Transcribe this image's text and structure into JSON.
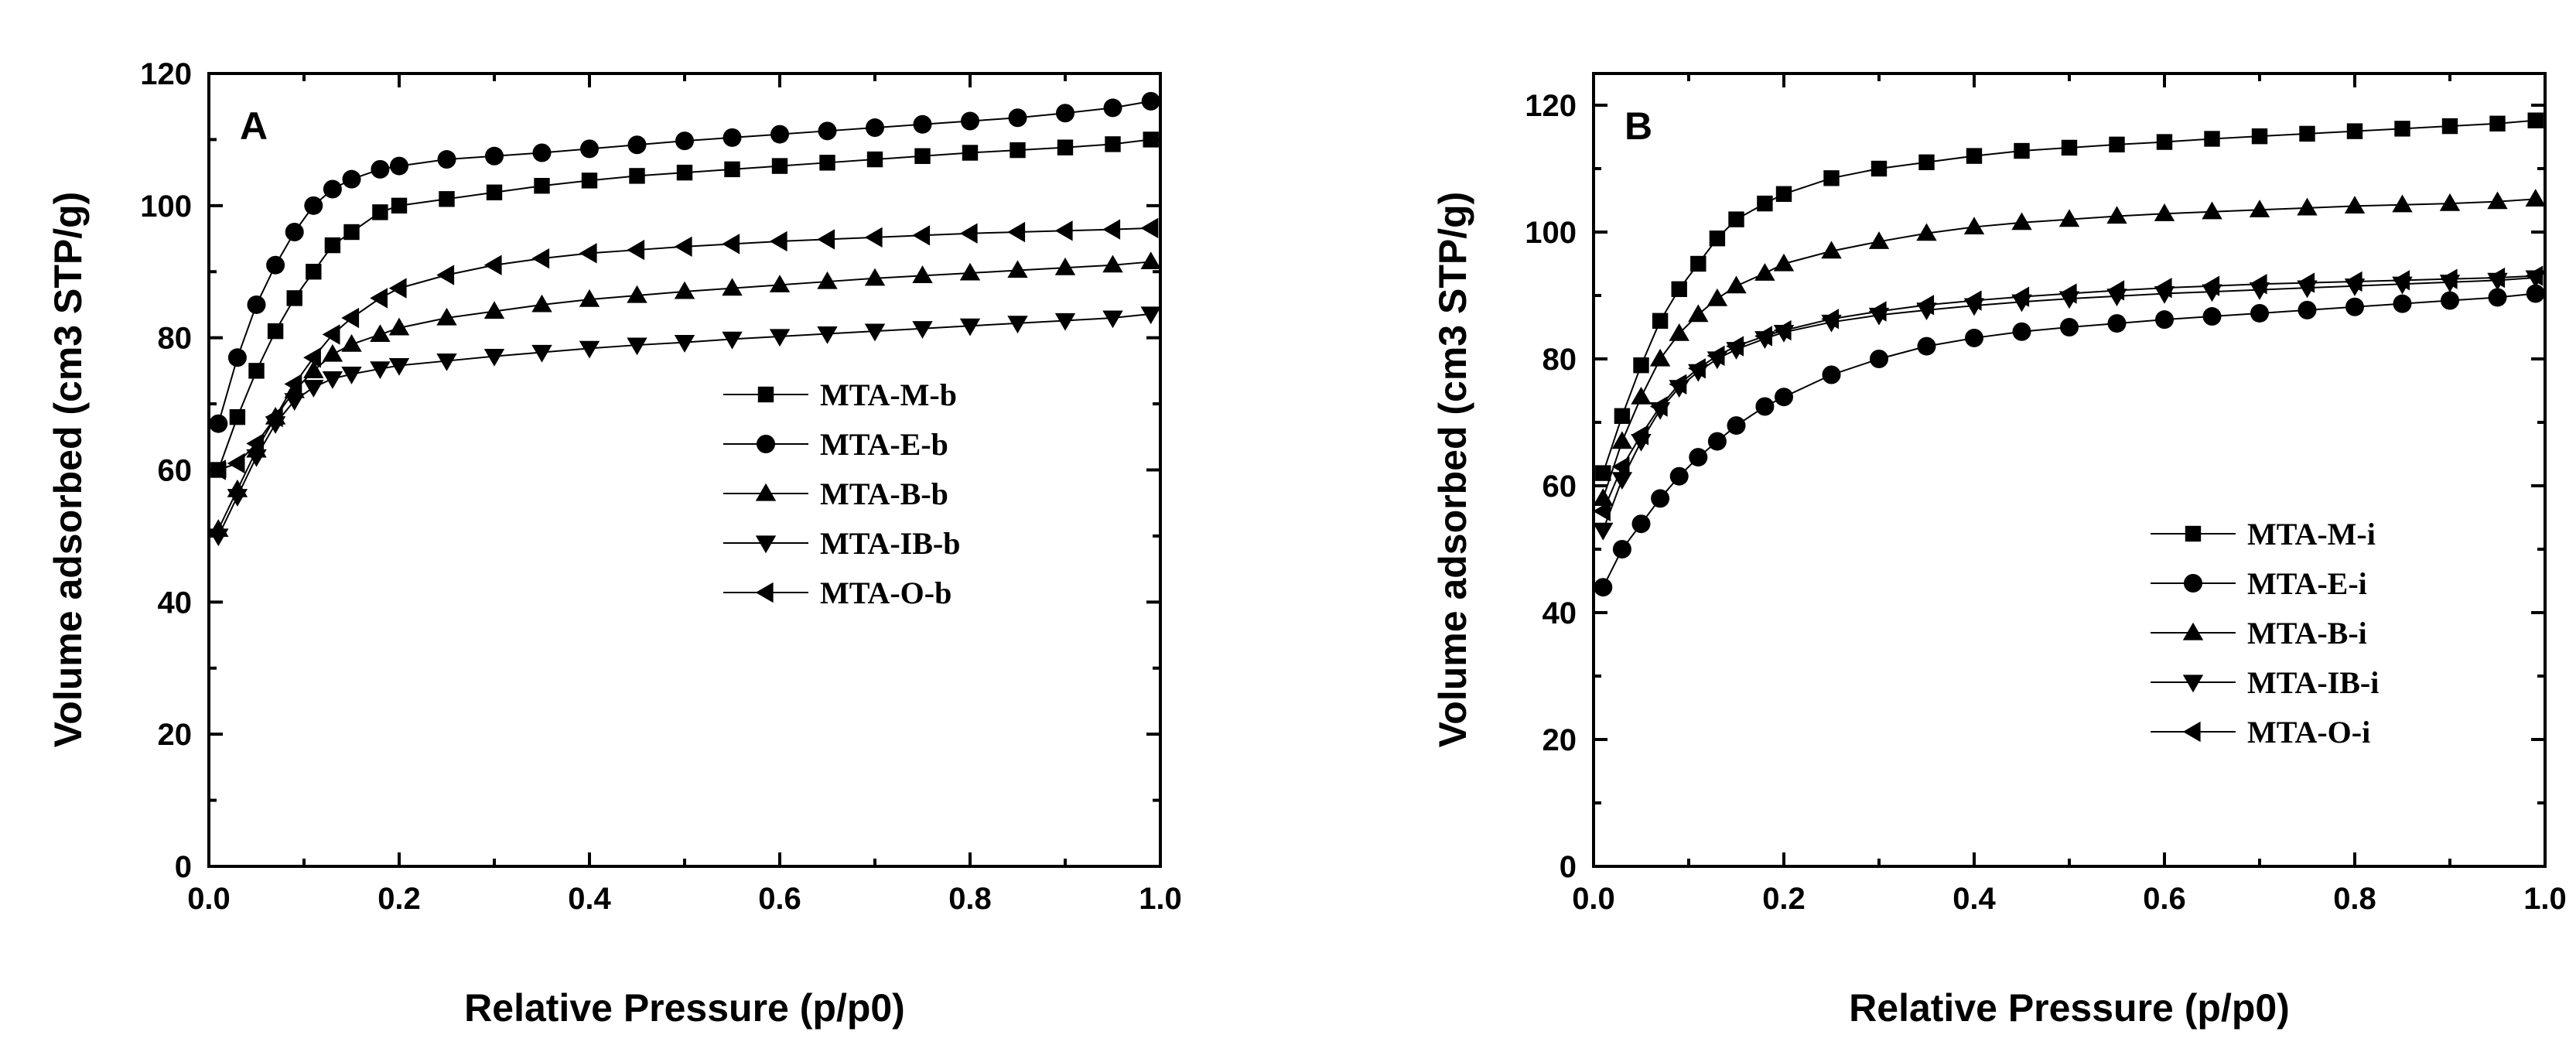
{
  "chart_data": [
    {
      "type": "line",
      "panel": "A",
      "xlabel": "Relative Pressure (p/p0)",
      "ylabel": "Volume adsorbed (cm3 STP/g)",
      "xlim": [
        0.0,
        1.0
      ],
      "ylim": [
        0,
        120
      ],
      "xticks": [
        0.0,
        0.2,
        0.4,
        0.6,
        0.8,
        1.0
      ],
      "yticks": [
        0,
        20,
        40,
        60,
        80,
        100,
        120
      ],
      "xtick_labels": [
        "0.0",
        "0.2",
        "0.4",
        "0.6",
        "0.8",
        "1.0"
      ],
      "ytick_labels": [
        "0",
        "20",
        "40",
        "60",
        "80",
        "100",
        "120"
      ],
      "legend_position": "center-right",
      "series": [
        {
          "name": "MTA-M-b",
          "marker": "square",
          "x": [
            0.01,
            0.03,
            0.05,
            0.07,
            0.09,
            0.11,
            0.13,
            0.15,
            0.18,
            0.2,
            0.25,
            0.3,
            0.35,
            0.4,
            0.45,
            0.5,
            0.55,
            0.6,
            0.65,
            0.7,
            0.75,
            0.8,
            0.85,
            0.9,
            0.95,
            0.99
          ],
          "y": [
            60,
            68,
            75,
            81,
            86,
            90,
            94,
            96,
            99,
            100,
            101,
            102,
            103,
            103.8,
            104.5,
            105,
            105.5,
            106,
            106.5,
            107,
            107.5,
            108,
            108.4,
            108.8,
            109.3,
            110
          ]
        },
        {
          "name": "MTA-E-b",
          "marker": "circle",
          "x": [
            0.01,
            0.03,
            0.05,
            0.07,
            0.09,
            0.11,
            0.13,
            0.15,
            0.18,
            0.2,
            0.25,
            0.3,
            0.35,
            0.4,
            0.45,
            0.5,
            0.55,
            0.6,
            0.65,
            0.7,
            0.75,
            0.8,
            0.85,
            0.9,
            0.95,
            0.99
          ],
          "y": [
            67,
            77,
            85,
            91,
            96,
            100,
            102.5,
            104,
            105.5,
            106,
            107,
            107.5,
            108,
            108.6,
            109.2,
            109.8,
            110.3,
            110.8,
            111.3,
            111.8,
            112.3,
            112.8,
            113.3,
            114,
            114.8,
            115.8
          ]
        },
        {
          "name": "MTA-B-b",
          "marker": "triangle-up",
          "x": [
            0.01,
            0.03,
            0.05,
            0.07,
            0.09,
            0.11,
            0.13,
            0.15,
            0.18,
            0.2,
            0.25,
            0.3,
            0.35,
            0.4,
            0.45,
            0.5,
            0.55,
            0.6,
            0.65,
            0.7,
            0.75,
            0.8,
            0.85,
            0.9,
            0.95,
            0.99
          ],
          "y": [
            51,
            57,
            63,
            68,
            72,
            75,
            77.5,
            79,
            80.5,
            81.5,
            83,
            84,
            85,
            85.8,
            86.4,
            87,
            87.5,
            88,
            88.5,
            89,
            89.4,
            89.8,
            90.2,
            90.6,
            91,
            91.5
          ]
        },
        {
          "name": "MTA-IB-b",
          "marker": "triangle-down",
          "x": [
            0.01,
            0.03,
            0.05,
            0.07,
            0.09,
            0.11,
            0.13,
            0.15,
            0.18,
            0.2,
            0.25,
            0.3,
            0.35,
            0.4,
            0.45,
            0.5,
            0.55,
            0.6,
            0.65,
            0.7,
            0.75,
            0.8,
            0.85,
            0.9,
            0.95,
            0.99
          ],
          "y": [
            50,
            56,
            62,
            67,
            70.5,
            72.5,
            73.8,
            74.5,
            75.3,
            75.8,
            76.5,
            77.2,
            77.8,
            78.4,
            78.9,
            79.3,
            79.8,
            80.2,
            80.6,
            81,
            81.4,
            81.8,
            82.2,
            82.6,
            83,
            83.6
          ]
        },
        {
          "name": "MTA-O-b",
          "marker": "triangle-left",
          "x": [
            0.01,
            0.03,
            0.05,
            0.07,
            0.09,
            0.11,
            0.13,
            0.15,
            0.18,
            0.2,
            0.25,
            0.3,
            0.35,
            0.4,
            0.45,
            0.5,
            0.55,
            0.6,
            0.65,
            0.7,
            0.75,
            0.8,
            0.85,
            0.9,
            0.95,
            0.99
          ],
          "y": [
            60,
            61,
            64,
            68,
            73,
            77,
            80.5,
            83,
            86,
            87.5,
            89.5,
            91,
            92,
            92.8,
            93.3,
            93.8,
            94.2,
            94.6,
            94.9,
            95.2,
            95.5,
            95.8,
            96,
            96.2,
            96.4,
            96.6
          ]
        }
      ]
    },
    {
      "type": "line",
      "panel": "B",
      "xlabel": "Relative Pressure (p/p0)",
      "ylabel": "Volume adsorbed (cm3 STP/g)",
      "xlim": [
        0.0,
        1.0
      ],
      "ylim": [
        0,
        125
      ],
      "xticks": [
        0.0,
        0.2,
        0.4,
        0.6,
        0.8,
        1.0
      ],
      "yticks": [
        0,
        20,
        40,
        60,
        80,
        100,
        120
      ],
      "xtick_labels": [
        "0.0",
        "0.2",
        "0.4",
        "0.6",
        "0.8",
        "1.0"
      ],
      "ytick_labels": [
        "0",
        "20",
        "40",
        "60",
        "80",
        "100",
        "120"
      ],
      "legend_position": "bottom-right",
      "series": [
        {
          "name": "MTA-M-i",
          "marker": "square",
          "x": [
            0.01,
            0.03,
            0.05,
            0.07,
            0.09,
            0.11,
            0.13,
            0.15,
            0.18,
            0.2,
            0.25,
            0.3,
            0.35,
            0.4,
            0.45,
            0.5,
            0.55,
            0.6,
            0.65,
            0.7,
            0.75,
            0.8,
            0.85,
            0.9,
            0.95,
            0.99
          ],
          "y": [
            62,
            71,
            79,
            86,
            91,
            95,
            99,
            102,
            104.5,
            106,
            108.5,
            110,
            111,
            112,
            112.8,
            113.3,
            113.8,
            114.2,
            114.7,
            115.1,
            115.5,
            115.9,
            116.3,
            116.7,
            117.1,
            117.6
          ]
        },
        {
          "name": "MTA-E-i",
          "marker": "circle",
          "x": [
            0.01,
            0.03,
            0.05,
            0.07,
            0.09,
            0.11,
            0.13,
            0.15,
            0.18,
            0.2,
            0.25,
            0.3,
            0.35,
            0.4,
            0.45,
            0.5,
            0.55,
            0.6,
            0.65,
            0.7,
            0.75,
            0.8,
            0.85,
            0.9,
            0.95,
            0.99
          ],
          "y": [
            44,
            50,
            54,
            58,
            61.5,
            64.5,
            67,
            69.5,
            72.5,
            74,
            77.5,
            80,
            82,
            83.3,
            84.3,
            85,
            85.6,
            86.2,
            86.7,
            87.2,
            87.7,
            88.2,
            88.7,
            89.2,
            89.7,
            90.3
          ]
        },
        {
          "name": "MTA-B-i",
          "marker": "triangle-up",
          "x": [
            0.01,
            0.03,
            0.05,
            0.07,
            0.09,
            0.11,
            0.13,
            0.15,
            0.18,
            0.2,
            0.25,
            0.3,
            0.35,
            0.4,
            0.45,
            0.5,
            0.55,
            0.6,
            0.65,
            0.7,
            0.75,
            0.8,
            0.85,
            0.9,
            0.95,
            0.99
          ],
          "y": [
            58,
            67,
            74,
            80,
            84,
            87,
            89.5,
            91.5,
            93.5,
            95,
            97,
            98.5,
            99.8,
            100.8,
            101.5,
            102,
            102.5,
            102.9,
            103.2,
            103.5,
            103.8,
            104.1,
            104.3,
            104.5,
            104.8,
            105.2
          ]
        },
        {
          "name": "MTA-IB-i",
          "marker": "triangle-down",
          "x": [
            0.01,
            0.03,
            0.05,
            0.07,
            0.09,
            0.11,
            0.13,
            0.15,
            0.18,
            0.2,
            0.25,
            0.3,
            0.35,
            0.4,
            0.45,
            0.5,
            0.55,
            0.6,
            0.65,
            0.7,
            0.75,
            0.8,
            0.85,
            0.9,
            0.95,
            0.99
          ],
          "y": [
            53,
            61,
            67,
            72,
            75.5,
            78,
            80,
            81.5,
            83.2,
            84.2,
            85.8,
            86.9,
            87.7,
            88.4,
            89,
            89.5,
            89.9,
            90.3,
            90.6,
            90.9,
            91.2,
            91.5,
            91.8,
            92.1,
            92.4,
            92.8
          ]
        },
        {
          "name": "MTA-O-i",
          "marker": "triangle-left",
          "x": [
            0.01,
            0.03,
            0.05,
            0.07,
            0.09,
            0.11,
            0.13,
            0.15,
            0.18,
            0.2,
            0.25,
            0.3,
            0.35,
            0.4,
            0.45,
            0.5,
            0.55,
            0.6,
            0.65,
            0.7,
            0.75,
            0.8,
            0.85,
            0.9,
            0.95,
            0.99
          ],
          "y": [
            56,
            63,
            68,
            72.5,
            76,
            78.5,
            80.5,
            82,
            83.6,
            84.5,
            86.3,
            87.5,
            88.5,
            89.2,
            89.8,
            90.3,
            90.8,
            91.2,
            91.5,
            91.8,
            92,
            92.2,
            92.4,
            92.6,
            92.8,
            93.1
          ]
        }
      ]
    }
  ]
}
